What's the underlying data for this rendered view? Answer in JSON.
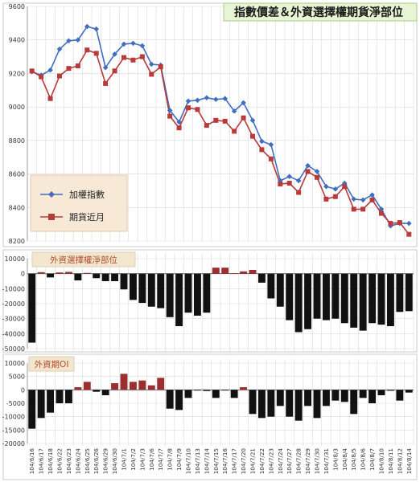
{
  "title": "指數價差＆外資選擇權期貨淨部位",
  "chart_data": [
    {
      "type": "line",
      "title": "指數價差＆外資選擇權期貨淨部位",
      "ylim": [
        8200,
        9600
      ],
      "yticks": [
        8200,
        8400,
        8600,
        8800,
        9000,
        9200,
        9400,
        9600
      ],
      "grid": true,
      "legend_position": "left-bottom",
      "series": [
        {
          "name": "加權指數",
          "color": "#3f6fbf",
          "marker": "diamond",
          "values": [
            9210,
            9190,
            9220,
            9345,
            9395,
            9400,
            9480,
            9465,
            9235,
            9315,
            9375,
            9380,
            9365,
            9255,
            9250,
            8980,
            8910,
            9035,
            9040,
            9055,
            9045,
            9050,
            8975,
            9025,
            8920,
            8795,
            8775,
            8560,
            8585,
            8560,
            8650,
            8615,
            8525,
            8510,
            8545,
            8450,
            8445,
            8475,
            8390,
            8290,
            8305,
            8305
          ]
        },
        {
          "name": "期貨近月",
          "color": "#b83a3a",
          "marker": "square",
          "values": [
            9215,
            9180,
            9050,
            9185,
            9230,
            9245,
            9340,
            9320,
            9140,
            9215,
            9295,
            9280,
            9300,
            9195,
            9240,
            8945,
            8875,
            8995,
            8985,
            8890,
            8920,
            8915,
            8855,
            8935,
            8825,
            8745,
            8690,
            8540,
            8545,
            8490,
            8615,
            8580,
            8450,
            8465,
            8525,
            8390,
            8390,
            8445,
            8365,
            8305,
            8310,
            8240
          ]
        }
      ]
    },
    {
      "type": "bar",
      "title": "外資選擇權淨部位",
      "ylim": [
        -50000,
        10000
      ],
      "yticks": [
        10000,
        0,
        -10000,
        -20000,
        -30000,
        -40000,
        -50000
      ],
      "grid": true,
      "values": [
        -46000,
        1000,
        -2500,
        800,
        1200,
        -4500,
        500,
        -3000,
        -5000,
        -5000,
        -10500,
        -17500,
        -19500,
        -22000,
        -23000,
        -29000,
        -35000,
        -26000,
        -28000,
        -26000,
        4000,
        4000,
        300,
        1500,
        2500,
        -6000,
        -16500,
        -22000,
        -31000,
        -39000,
        -37000,
        -30000,
        -31000,
        -30000,
        -33000,
        -36000,
        -38000,
        -33000,
        -34000,
        -35000,
        -25500,
        -25000
      ]
    },
    {
      "type": "bar",
      "title": "外資期OI",
      "ylim": [
        -20000,
        10000
      ],
      "yticks": [
        10000,
        5000,
        0,
        -5000,
        -10000,
        -15000,
        -20000
      ],
      "grid": true,
      "values": [
        -14500,
        -10500,
        -8500,
        -5000,
        -5000,
        1000,
        3000,
        -700,
        -2000,
        2500,
        6000,
        3000,
        3500,
        1700,
        4500,
        -7000,
        -7500,
        -3000,
        -200,
        -400,
        -3000,
        -200,
        -3000,
        1000,
        -9000,
        -10500,
        -10000,
        -6000,
        -10000,
        -11500,
        -6000,
        -10500,
        -6000,
        -4000,
        -4500,
        -9000,
        -3000,
        -5000,
        -2000,
        -300,
        -4000,
        -1000
      ]
    }
  ],
  "x_labels": [
    "104/6/16",
    "104/6/17",
    "104/6/18",
    "104/6/22",
    "104/6/23",
    "104/6/24",
    "104/6/25",
    "104/6/26",
    "104/6/29",
    "104/6/30",
    "104/7/1",
    "104/7/2",
    "104/7/3",
    "104/7/6",
    "104/7/7",
    "104/7/8",
    "104/7/9",
    "104/7/10",
    "104/7/13",
    "104/7/14",
    "104/7/15",
    "104/7/16",
    "104/7/17",
    "104/7/20",
    "104/7/21",
    "104/7/22",
    "104/7/23",
    "104/7/24",
    "104/7/27",
    "104/7/28",
    "104/7/29",
    "104/7/30",
    "104/7/31",
    "104/8/3",
    "104/8/4",
    "104/8/5",
    "104/8/6",
    "104/8/7",
    "104/8/10",
    "104/8/11",
    "104/8/12",
    "104/8/14"
  ],
  "colors": {
    "title_bg": "#e8f5d4",
    "title_text": "#1a1a1a",
    "panel_title_bg": "#f3e6cf",
    "panel_title_text": "#b04a2a",
    "legend_bg": "#f7e9d6",
    "bar_positive": "#9b2f2f",
    "bar_negative": "#111111",
    "grid": "#d9d9d9"
  }
}
